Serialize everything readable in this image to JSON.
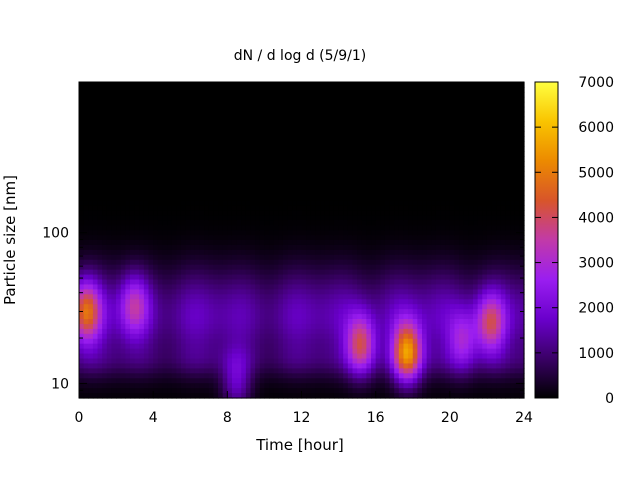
{
  "chart_data": {
    "type": "heatmap",
    "title": "dN / d log d (5/9/1)",
    "xlabel": "Time [hour]",
    "ylabel": "Particle size [nm]",
    "xlim": [
      0,
      24
    ],
    "ylim": [
      8,
      1000
    ],
    "y_scale": "log",
    "x_ticks": [
      0,
      4,
      8,
      12,
      16,
      20,
      24
    ],
    "x_tick_labels": [
      "0",
      "4",
      "8",
      "12",
      "16",
      "20",
      "24"
    ],
    "y_ticks": [
      10,
      100
    ],
    "y_tick_labels": [
      "10",
      "100"
    ],
    "colorbar": {
      "range": [
        0,
        7000
      ],
      "ticks": [
        0,
        1000,
        2000,
        3000,
        4000,
        5000,
        6000,
        7000
      ],
      "tick_labels": [
        "0",
        "1000",
        "2000",
        "3000",
        "4000",
        "5000",
        "6000",
        "7000"
      ],
      "colormap": [
        "#000000",
        "#3a0066",
        "#6a00cc",
        "#9a1ef0",
        "#c23aa8",
        "#d8552a",
        "#ec8a00",
        "#f9c400",
        "#ffff40"
      ]
    },
    "grid": false,
    "legend": "none",
    "peaks": [
      {
        "time_hour": 0.4,
        "size_nm": 30,
        "value": 4800
      },
      {
        "time_hour": 3.0,
        "size_nm": 33,
        "value": 3600
      },
      {
        "time_hour": 8.5,
        "size_nm": 10,
        "value": 3000
      },
      {
        "time_hour": 15.2,
        "size_nm": 18,
        "value": 4700
      },
      {
        "time_hour": 17.7,
        "size_nm": 16,
        "value": 6000
      },
      {
        "time_hour": 20.7,
        "size_nm": 19,
        "value": 3400
      },
      {
        "time_hour": 22.2,
        "size_nm": 25,
        "value": 4200
      }
    ]
  }
}
